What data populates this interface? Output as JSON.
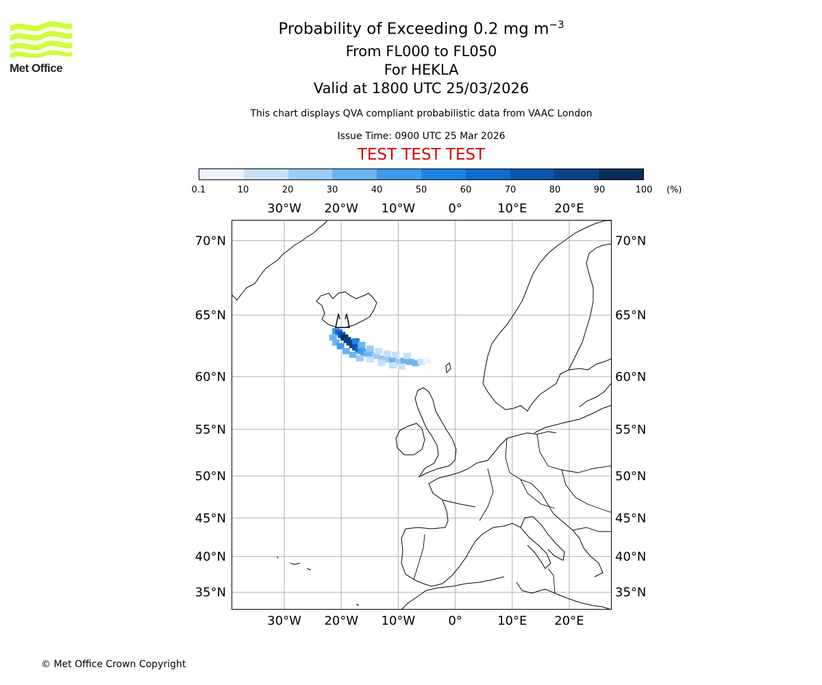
{
  "logo": {
    "text": "Met Office",
    "color": "#ccff33"
  },
  "title": {
    "main": "Probability of Exceeding 0.2 mg m",
    "superscript": "−3",
    "levels": "From FL000 to FL050",
    "volcano": "For HEKLA",
    "valid": "Valid at 1800 UTC 25/03/2026",
    "note": "This chart displays QVA compliant probabilistic data from VAAC London",
    "issue_time": "Issue Time: 0900 UTC 25 Mar 2026",
    "test_banner": "TEST TEST TEST",
    "test_color": "#dd0000"
  },
  "colorbar": {
    "ticks": [
      "0.1",
      "10",
      "20",
      "30",
      "40",
      "50",
      "60",
      "70",
      "80",
      "90",
      "100"
    ],
    "unit": "(%)",
    "colors": [
      "#eaf4ff",
      "#c6e2fa",
      "#9ccdf6",
      "#6ab4f0",
      "#3d9cea",
      "#1c84e6",
      "#0c6cd2",
      "#0a55ad",
      "#084389",
      "#062c5a"
    ]
  },
  "map": {
    "lon_labels": [
      "30°W",
      "20°W",
      "10°W",
      "0°",
      "10°E",
      "20°E"
    ],
    "lat_labels": [
      "70°N",
      "65°N",
      "60°N",
      "55°N",
      "50°N",
      "45°N",
      "40°N",
      "35°N"
    ],
    "lon_values": [
      -30,
      -20,
      -10,
      0,
      10,
      20
    ],
    "lat_values": [
      70,
      65,
      60,
      55,
      50,
      45,
      40,
      35
    ],
    "extent": {
      "lon_min": -39.2,
      "lon_max": 27.4,
      "lat_min": 32.5,
      "lat_max": 71.2
    },
    "source_marker": "HEKLA",
    "plume": [
      {
        "lon": -21.0,
        "lat": 63.8,
        "p": 45
      },
      {
        "lon": -20.5,
        "lat": 63.7,
        "p": 60
      },
      {
        "lon": -20.0,
        "lat": 63.5,
        "p": 75
      },
      {
        "lon": -19.5,
        "lat": 63.3,
        "p": 92
      },
      {
        "lon": -19.0,
        "lat": 63.1,
        "p": 88
      },
      {
        "lon": -18.5,
        "lat": 62.9,
        "p": 85
      },
      {
        "lon": -18.0,
        "lat": 62.7,
        "p": 80
      },
      {
        "lon": -17.5,
        "lat": 62.5,
        "p": 72
      },
      {
        "lon": -17.0,
        "lat": 62.3,
        "p": 60
      },
      {
        "lon": -16.5,
        "lat": 62.2,
        "p": 48
      },
      {
        "lon": -16.0,
        "lat": 62.1,
        "p": 40
      },
      {
        "lon": -15.5,
        "lat": 62.0,
        "p": 34
      },
      {
        "lon": -15.0,
        "lat": 61.9,
        "p": 30
      },
      {
        "lon": -14.0,
        "lat": 61.8,
        "p": 26
      },
      {
        "lon": -13.0,
        "lat": 61.6,
        "p": 28
      },
      {
        "lon": -12.0,
        "lat": 61.5,
        "p": 25
      },
      {
        "lon": -11.0,
        "lat": 61.4,
        "p": 30
      },
      {
        "lon": -10.0,
        "lat": 61.3,
        "p": 27
      },
      {
        "lon": -9.0,
        "lat": 61.4,
        "p": 32
      },
      {
        "lon": -8.0,
        "lat": 61.3,
        "p": 36
      },
      {
        "lon": -7.0,
        "lat": 61.2,
        "p": 30
      },
      {
        "lon": -6.0,
        "lat": 61.3,
        "p": 18
      },
      {
        "lon": -5.0,
        "lat": 61.4,
        "p": 8
      },
      {
        "lon": -21.5,
        "lat": 63.3,
        "p": 35
      },
      {
        "lon": -21.0,
        "lat": 62.9,
        "p": 30
      },
      {
        "lon": -20.2,
        "lat": 62.6,
        "p": 40
      },
      {
        "lon": -19.2,
        "lat": 62.2,
        "p": 38
      },
      {
        "lon": -18.0,
        "lat": 61.9,
        "p": 30
      },
      {
        "lon": -16.8,
        "lat": 61.6,
        "p": 22
      },
      {
        "lon": -15.0,
        "lat": 61.5,
        "p": 15
      },
      {
        "lon": -13.0,
        "lat": 61.2,
        "p": 14
      },
      {
        "lon": -11.0,
        "lat": 61.0,
        "p": 18
      },
      {
        "lon": -9.5,
        "lat": 60.9,
        "p": 16
      },
      {
        "lon": -17.5,
        "lat": 63.0,
        "p": 55
      },
      {
        "lon": -16.5,
        "lat": 62.7,
        "p": 35
      },
      {
        "lon": -15.0,
        "lat": 62.4,
        "p": 22
      },
      {
        "lon": -13.5,
        "lat": 62.2,
        "p": 15
      },
      {
        "lon": -12.0,
        "lat": 62.0,
        "p": 12
      },
      {
        "lon": -10.5,
        "lat": 61.9,
        "p": 15
      },
      {
        "lon": -8.5,
        "lat": 61.8,
        "p": 14
      }
    ]
  },
  "footer": {
    "copyright": "© Met Office Crown Copyright"
  }
}
